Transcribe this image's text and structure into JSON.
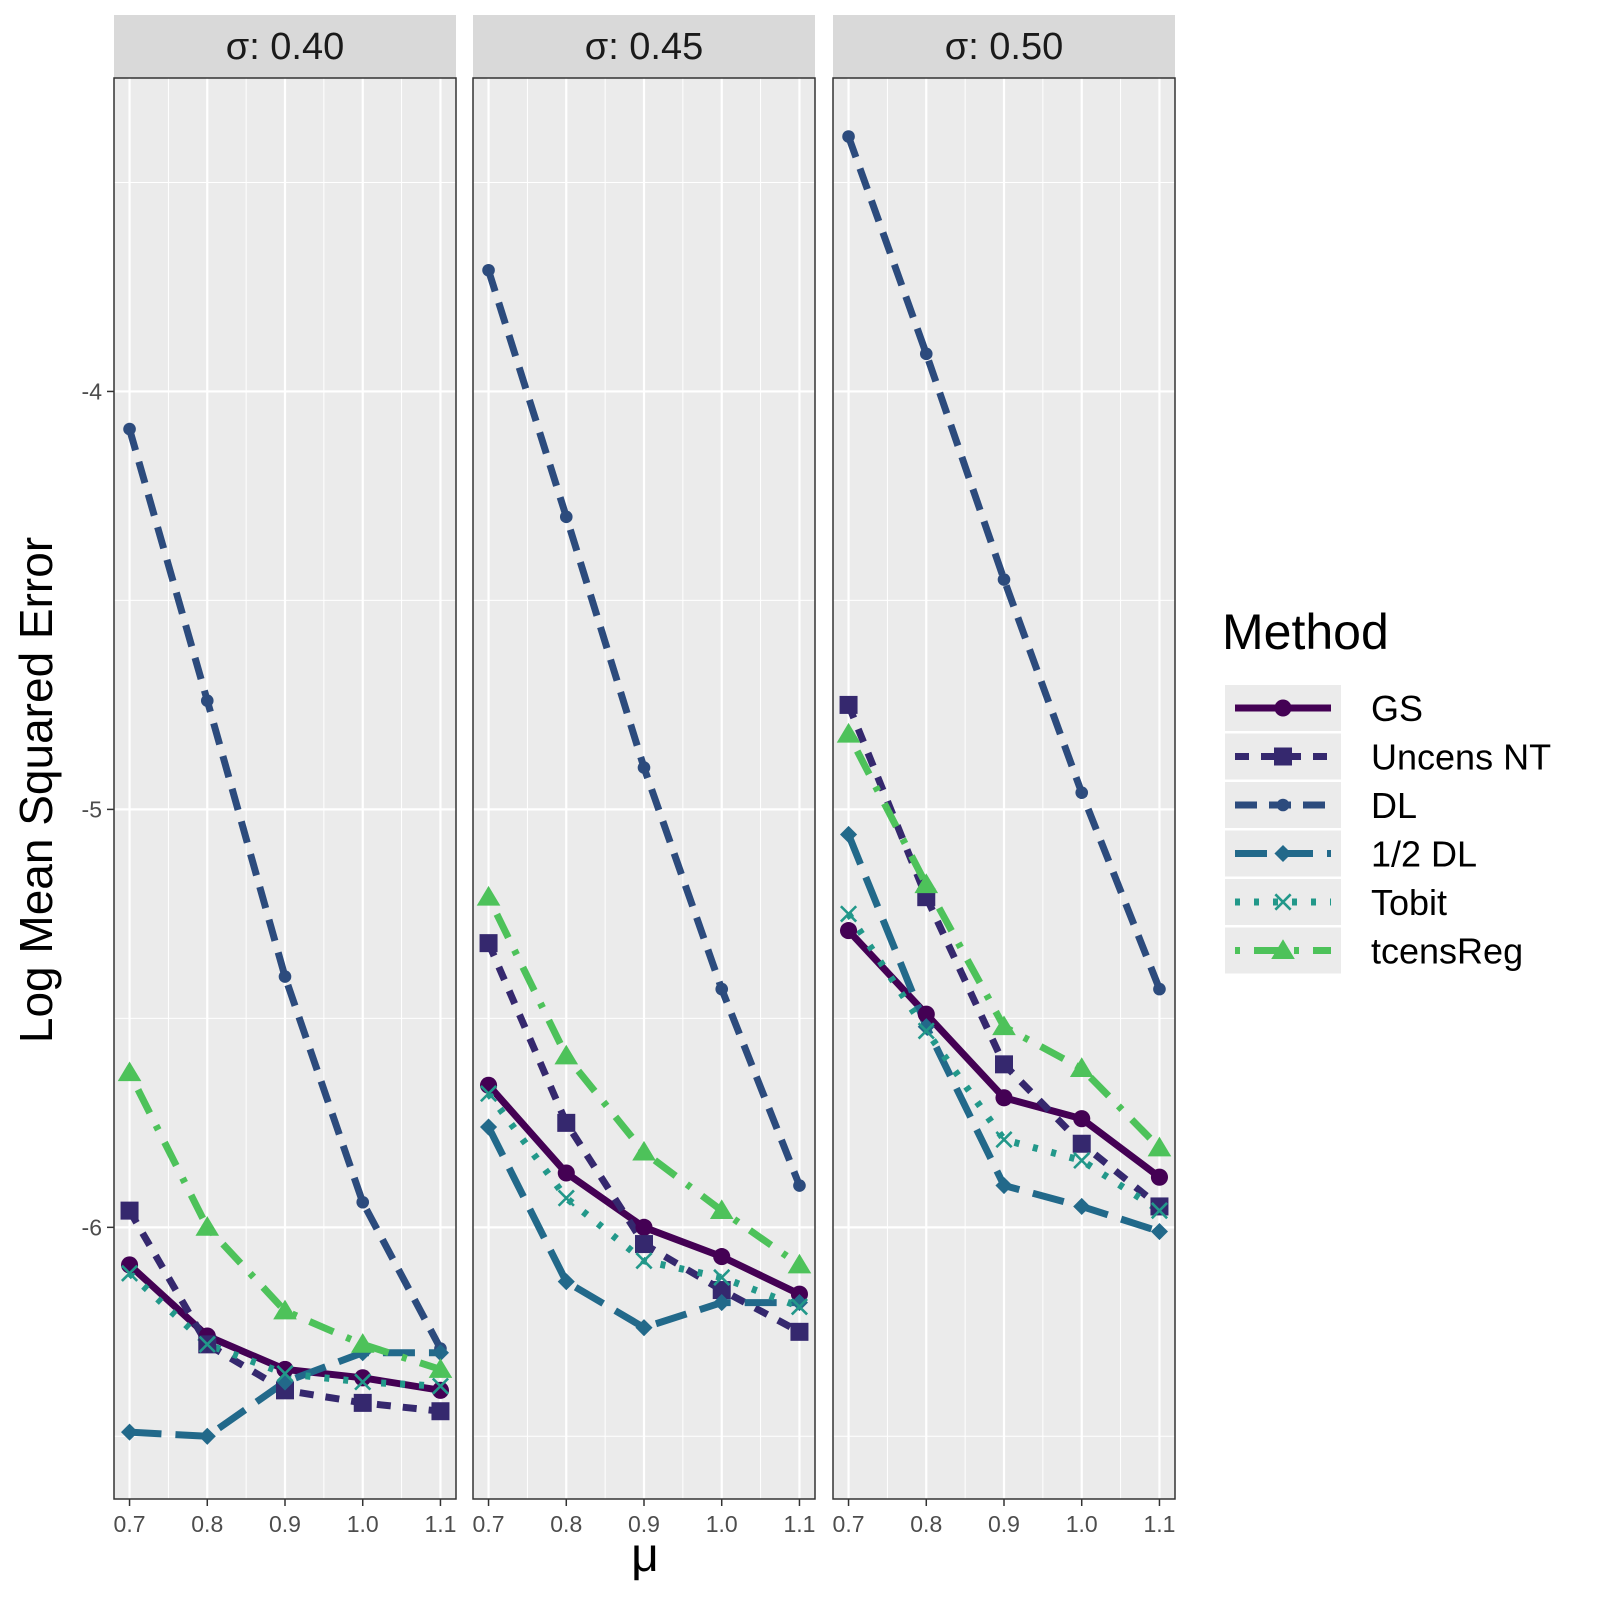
{
  "chart_data": {
    "type": "line",
    "ylabel": "Log Mean Squared Error",
    "xlabel": "μ",
    "x": [
      0.7,
      0.8,
      0.9,
      1.0,
      1.1
    ],
    "x_tick_labels": [
      "0.7",
      "0.8",
      "0.9",
      "1.0",
      "1.1"
    ],
    "xlim": [
      0.68,
      1.12
    ],
    "ylim": [
      -6.65,
      -3.25
    ],
    "y_ticks": [
      -4,
      -5,
      -6
    ],
    "y_tick_labels": [
      "-4",
      "-5",
      "-6"
    ],
    "grid": true,
    "legend": {
      "title": "Method",
      "placement": "right"
    },
    "series_styles": [
      {
        "name": "GS",
        "color": "#440154",
        "dash": "solid",
        "marker": "circle"
      },
      {
        "name": "Uncens NT",
        "color": "#35286e",
        "dash": "dashed-short",
        "marker": "square"
      },
      {
        "name": "DL",
        "color": "#2c4b7d",
        "dash": "dashed",
        "marker": "small-circle"
      },
      {
        "name": "1/2 DL",
        "color": "#22698a",
        "dash": "longdash",
        "marker": "diamond"
      },
      {
        "name": "Tobit",
        "color": "#22988a",
        "dash": "dotted",
        "marker": "x"
      },
      {
        "name": "tcensReg",
        "color": "#4dc25a",
        "dash": "dotdash",
        "marker": "triangle"
      }
    ],
    "panels": [
      {
        "strip": "σ: 0.40",
        "series": [
          {
            "name": "GS",
            "values": [
              -6.09,
              -6.26,
              -6.34,
              -6.36,
              -6.39
            ]
          },
          {
            "name": "Uncens NT",
            "values": [
              -5.96,
              -6.28,
              -6.39,
              -6.42,
              -6.44
            ]
          },
          {
            "name": "DL",
            "values": [
              -4.09,
              -4.74,
              -5.4,
              -5.94,
              -6.29
            ]
          },
          {
            "name": "1/2 DL",
            "values": [
              -6.49,
              -6.5,
              -6.37,
              -6.3,
              -6.3
            ]
          },
          {
            "name": "Tobit",
            "values": [
              -6.11,
              -6.28,
              -6.35,
              -6.37,
              -6.38
            ]
          },
          {
            "name": "tcensReg",
            "values": [
              -5.63,
              -6.0,
              -6.2,
              -6.28,
              -6.34
            ]
          }
        ]
      },
      {
        "strip": "σ: 0.45",
        "series": [
          {
            "name": "GS",
            "values": [
              -5.66,
              -5.87,
              -6.0,
              -6.07,
              -6.16
            ]
          },
          {
            "name": "Uncens NT",
            "values": [
              -5.32,
              -5.75,
              -6.04,
              -6.15,
              -6.25
            ]
          },
          {
            "name": "DL",
            "values": [
              -3.71,
              -4.3,
              -4.9,
              -5.43,
              -5.9
            ]
          },
          {
            "name": "1/2 DL",
            "values": [
              -5.76,
              -6.13,
              -6.24,
              -6.18,
              -6.18
            ]
          },
          {
            "name": "Tobit",
            "values": [
              -5.68,
              -5.93,
              -6.08,
              -6.12,
              -6.19
            ]
          },
          {
            "name": "tcensReg",
            "values": [
              -5.21,
              -5.59,
              -5.82,
              -5.96,
              -6.09
            ]
          }
        ]
      },
      {
        "strip": "σ: 0.50",
        "series": [
          {
            "name": "GS",
            "values": [
              -5.29,
              -5.49,
              -5.69,
              -5.74,
              -5.88
            ]
          },
          {
            "name": "Uncens NT",
            "values": [
              -4.75,
              -5.21,
              -5.61,
              -5.8,
              -5.95
            ]
          },
          {
            "name": "DL",
            "values": [
              -3.39,
              -3.91,
              -4.45,
              -4.96,
              -5.43
            ]
          },
          {
            "name": "1/2 DL",
            "values": [
              -5.06,
              -5.52,
              -5.9,
              -5.95,
              -6.01
            ]
          },
          {
            "name": "Tobit",
            "values": [
              -5.25,
              -5.53,
              -5.79,
              -5.84,
              -5.96
            ]
          },
          {
            "name": "tcensReg",
            "values": [
              -4.82,
              -5.18,
              -5.52,
              -5.62,
              -5.81
            ]
          }
        ]
      }
    ]
  }
}
